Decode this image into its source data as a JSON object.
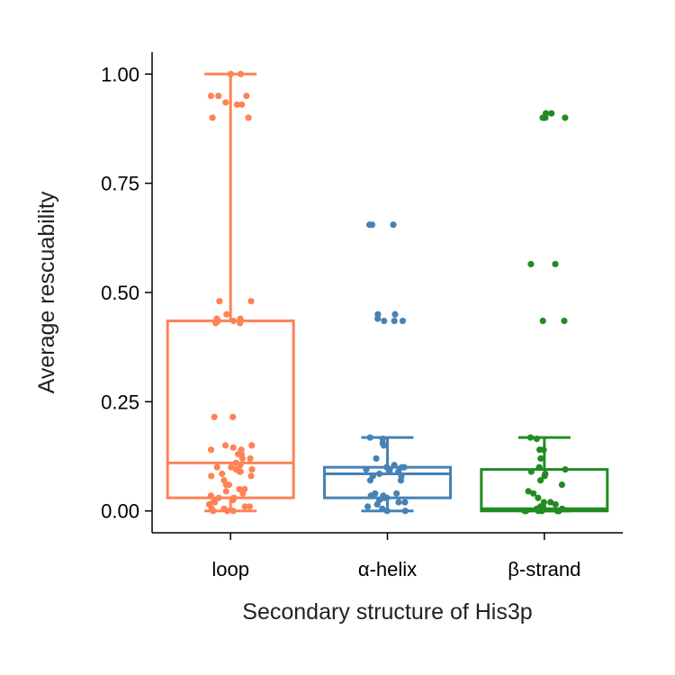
{
  "chart_data": {
    "type": "box",
    "title": "",
    "xlabel": "Secondary structure of His3p",
    "ylabel": "Average rescuability",
    "ylim": [
      -0.05,
      1.05
    ],
    "yticks": [
      "0.00",
      "0.25",
      "0.50",
      "0.75",
      "1.00"
    ],
    "ytick_values": [
      0,
      0.25,
      0.5,
      0.75,
      1.0
    ],
    "grid": false,
    "categories": [
      "loop",
      "α-helix",
      "β-strand"
    ],
    "series": [
      {
        "category": "loop",
        "color": "#FF8256",
        "box": {
          "whisker_low": 0.0,
          "q1": 0.03,
          "median": 0.11,
          "q3": 0.435,
          "whisker_high": 1.0
        },
        "points": [
          1.0,
          1.0,
          0.95,
          0.95,
          0.95,
          0.935,
          0.93,
          0.93,
          0.9,
          0.9,
          0.48,
          0.48,
          0.45,
          0.44,
          0.44,
          0.435,
          0.435,
          0.43,
          0.43,
          0.215,
          0.215,
          0.15,
          0.15,
          0.145,
          0.14,
          0.14,
          0.13,
          0.13,
          0.12,
          0.12,
          0.11,
          0.105,
          0.1,
          0.1,
          0.095,
          0.095,
          0.09,
          0.09,
          0.085,
          0.08,
          0.08,
          0.07,
          0.06,
          0.06,
          0.05,
          0.05,
          0.045,
          0.04,
          0.035,
          0.03,
          0.03,
          0.025,
          0.02,
          0.02,
          0.015,
          0.01,
          0.01,
          0.005,
          0.005,
          0.0,
          0.0,
          0.0
        ]
      },
      {
        "category": "α-helix",
        "color": "#4682B4",
        "box": {
          "whisker_low": 0.0,
          "q1": 0.03,
          "median": 0.085,
          "q3": 0.1,
          "whisker_high": 0.168
        },
        "points": [
          0.655,
          0.655,
          0.655,
          0.45,
          0.45,
          0.44,
          0.435,
          0.435,
          0.435,
          0.168,
          0.165,
          0.155,
          0.15,
          0.12,
          0.105,
          0.1,
          0.1,
          0.1,
          0.095,
          0.095,
          0.09,
          0.09,
          0.09,
          0.085,
          0.08,
          0.08,
          0.07,
          0.07,
          0.04,
          0.04,
          0.035,
          0.035,
          0.03,
          0.03,
          0.03,
          0.025,
          0.02,
          0.02,
          0.015,
          0.01,
          0.005,
          0.0,
          0.0
        ]
      },
      {
        "category": "β-strand",
        "color": "#228B22",
        "box": {
          "whisker_low": 0.0,
          "q1": 0.0,
          "median": 0.005,
          "q3": 0.095,
          "whisker_high": 0.168
        },
        "points": [
          0.91,
          0.91,
          0.9,
          0.9,
          0.9,
          0.565,
          0.565,
          0.435,
          0.435,
          0.168,
          0.165,
          0.14,
          0.14,
          0.12,
          0.1,
          0.095,
          0.09,
          0.085,
          0.08,
          0.07,
          0.06,
          0.045,
          0.04,
          0.03,
          0.02,
          0.02,
          0.015,
          0.01,
          0.01,
          0.005,
          0.005,
          0.005,
          0.0,
          0.0,
          0.0,
          0.0,
          0.0,
          0.0,
          0.0,
          0.0
        ]
      }
    ]
  }
}
